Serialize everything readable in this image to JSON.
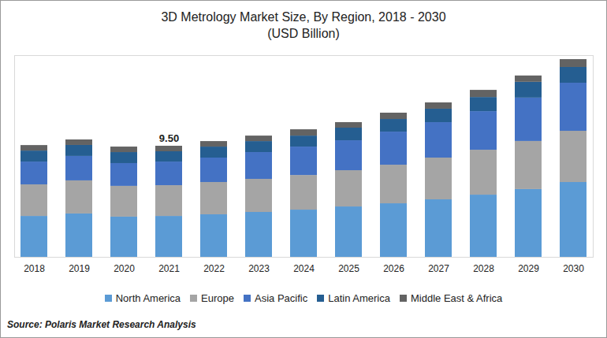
{
  "chart_data": {
    "type": "bar",
    "stacked": true,
    "title": "3D Metrology Market Size, By Region, 2018 - 2030",
    "subtitle": "(USD Billion)",
    "source": "Source: Polaris Market Research Analysis",
    "categories": [
      "2018",
      "2019",
      "2020",
      "2021",
      "2022",
      "2023",
      "2024",
      "2025",
      "2026",
      "2027",
      "2028",
      "2029",
      "2030"
    ],
    "series": [
      {
        "name": "North America",
        "color": "#5b9bd5",
        "values": [
          3.5,
          3.71,
          3.44,
          3.5,
          3.64,
          3.84,
          4.04,
          4.31,
          4.58,
          4.92,
          5.32,
          5.8,
          6.4
        ]
      },
      {
        "name": "Europe",
        "color": "#a5a5a5",
        "values": [
          2.7,
          2.83,
          2.63,
          2.63,
          2.76,
          2.83,
          2.96,
          3.1,
          3.3,
          3.57,
          3.84,
          4.11,
          4.38
        ]
      },
      {
        "name": "Asia Pacific",
        "color": "#4472c4",
        "values": [
          1.95,
          2.09,
          1.95,
          2.02,
          2.09,
          2.29,
          2.43,
          2.56,
          2.83,
          3.03,
          3.3,
          3.71,
          4.11
        ]
      },
      {
        "name": "Latin America",
        "color": "#255e91",
        "values": [
          0.94,
          0.94,
          0.94,
          0.88,
          0.94,
          0.94,
          0.94,
          1.08,
          1.08,
          1.15,
          1.21,
          1.35,
          1.35
        ]
      },
      {
        "name": "Middle East & Africa",
        "color": "#636363",
        "values": [
          0.47,
          0.47,
          0.47,
          0.47,
          0.47,
          0.47,
          0.54,
          0.47,
          0.54,
          0.54,
          0.61,
          0.54,
          0.67
        ]
      }
    ],
    "ylim": [
      0,
      17.25
    ],
    "tick_labels": "x",
    "legend": "bottom",
    "annotations": [
      {
        "category": "2021",
        "value": 9.5,
        "label": "9.50"
      }
    ]
  }
}
